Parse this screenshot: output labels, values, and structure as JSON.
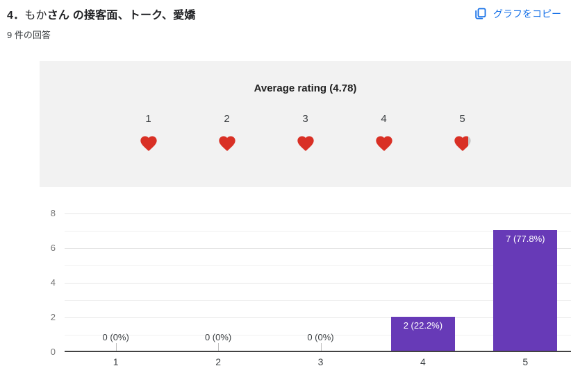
{
  "header": {
    "title_segments": [
      {
        "text": "4．",
        "bold": true
      },
      {
        "text": "もか",
        "bold": false
      },
      {
        "text": "さん の接客面、トーク、愛嬌",
        "bold": true
      }
    ],
    "response_count": "9 件の回答",
    "copy_button_label": "グラフをコピー"
  },
  "rating": {
    "title": "Average rating (4.78)",
    "average": 4.78,
    "max": 5,
    "scale_labels": [
      "1",
      "2",
      "3",
      "4",
      "5"
    ],
    "heart_color": "#d93025",
    "heart_empty_color": "#c8c8c8"
  },
  "chart_data": {
    "type": "bar",
    "categories": [
      "1",
      "2",
      "3",
      "4",
      "5"
    ],
    "values": [
      0,
      0,
      0,
      2,
      7
    ],
    "value_labels": [
      "0 (0%)",
      "0 (0%)",
      "0 (0%)",
      "2 (22.2%)",
      "7 (77.8%)"
    ],
    "title": "",
    "xlabel": "",
    "ylabel": "",
    "ylim": [
      0,
      8
    ],
    "yticks": [
      0,
      2,
      4,
      6,
      8
    ],
    "grid": true,
    "legend": false,
    "bar_color": "#673ab7",
    "gridline_color_major": "#e6e6e6",
    "gridline_color_minor": "#f0f0f0"
  },
  "colors": {
    "accent_blue": "#1a73e8",
    "panel_gray": "#f2f2f2",
    "axis_text": "#757575"
  }
}
